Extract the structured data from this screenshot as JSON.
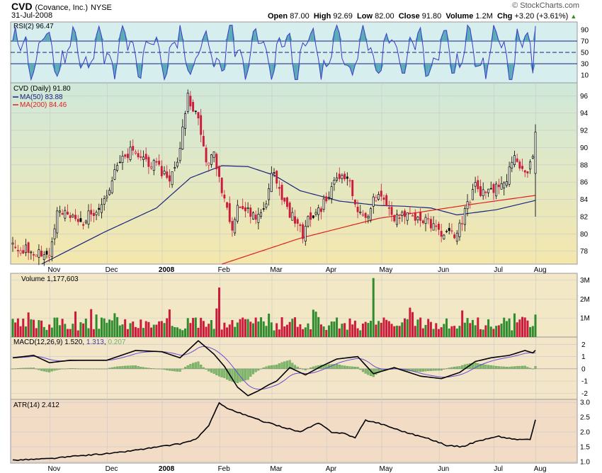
{
  "header": {
    "symbol": "CVD",
    "company": "(Covance, Inc.)",
    "exchange": "NYSE",
    "date": "31-Jul-2008",
    "open_label": "Open",
    "open": "87.00",
    "high_label": "High",
    "high": "92.69",
    "low_label": "Low",
    "low": "82.00",
    "close_label": "Close",
    "close": "91.80",
    "volume_label": "Volume",
    "volume": "1.2M",
    "chg_label": "Chg",
    "chg": "+3.20 (+3.61%)",
    "chg_icon": "triangle-up-icon",
    "brand": "© StockCharts.com"
  },
  "panels": {
    "rsi": {
      "label": "RSI(2) 96.47"
    },
    "price": {
      "label": "CVD (Daily) 91.80",
      "ma50": "MA(50) 83.88",
      "ma200": "MA(200) 84.46"
    },
    "volume": {
      "label": "Volume 1,177,603"
    },
    "macd": {
      "label": "MACD(12,26,9) 1.520,",
      "signal": "1.313",
      "hist": "0.207"
    },
    "atr": {
      "label": "ATR(14) 2.412"
    }
  },
  "colors": {
    "up": "#2e8b2e",
    "down": "#cc1a3a",
    "ma50": "#1a237e",
    "ma200": "#e02020",
    "rsi_fill": "#5aaab8",
    "rsi_bg": "#d8eeee",
    "price_bg_top": "#cde8d8",
    "price_bg_bot": "#f4e8b0",
    "vol_bg": "#f2e8c8",
    "macd_bg": "#f2e6cc",
    "atr_bg": "#f2dcc8"
  },
  "chart_data": [
    {
      "type": "line",
      "title": "RSI(2) 96.47",
      "ylim": [
        0,
        100
      ],
      "yticks": [
        10,
        30,
        50,
        70,
        90
      ],
      "y_end": 96.47
    },
    {
      "type": "candlestick",
      "title": "CVD (Daily) 91.80",
      "x_ticks": [
        "Nov",
        "Dec",
        "2008",
        "Feb",
        "Mar",
        "Apr",
        "May",
        "Jun",
        "Jul",
        "Aug"
      ],
      "yticks": [
        78,
        80,
        82,
        84,
        86,
        88,
        90,
        92,
        94,
        96
      ],
      "ylim": [
        76.5,
        97.5
      ],
      "close_keypoints": [
        [
          0,
          78.4
        ],
        [
          10,
          78.0
        ],
        [
          14,
          77.5
        ],
        [
          17,
          82.5
        ],
        [
          22,
          82.0
        ],
        [
          26,
          81.2
        ],
        [
          32,
          83.0
        ],
        [
          36,
          84.5
        ],
        [
          40,
          87.8
        ],
        [
          45,
          89.5
        ],
        [
          50,
          88.8
        ],
        [
          56,
          87.5
        ],
        [
          60,
          86.5
        ],
        [
          63,
          88.0
        ],
        [
          65,
          92.5
        ],
        [
          67,
          96.0
        ],
        [
          69,
          94.8
        ],
        [
          71,
          93.0
        ],
        [
          74,
          88.5
        ],
        [
          77,
          89.0
        ],
        [
          79,
          86.5
        ],
        [
          82,
          83.0
        ],
        [
          84,
          81.0
        ],
        [
          86,
          83.5
        ],
        [
          90,
          82.5
        ],
        [
          94,
          82.0
        ],
        [
          97,
          83.5
        ],
        [
          99,
          87.5
        ],
        [
          102,
          85.0
        ],
        [
          105,
          83.0
        ],
        [
          108,
          81.5
        ],
        [
          111,
          80.0
        ],
        [
          113,
          81.5
        ],
        [
          116,
          82.5
        ],
        [
          119,
          83.5
        ],
        [
          121,
          84.5
        ],
        [
          124,
          86.5
        ],
        [
          128,
          87.0
        ],
        [
          130,
          84.5
        ],
        [
          133,
          82.0
        ],
        [
          136,
          82.5
        ],
        [
          139,
          84.5
        ],
        [
          142,
          83.5
        ],
        [
          146,
          82.0
        ],
        [
          150,
          82.5
        ],
        [
          154,
          82.0
        ],
        [
          158,
          81.5
        ],
        [
          162,
          80.5
        ],
        [
          166,
          80.0
        ],
        [
          170,
          80.0
        ],
        [
          174,
          83.5
        ],
        [
          177,
          85.5
        ],
        [
          181,
          84.5
        ],
        [
          184,
          85.0
        ],
        [
          188,
          86.0
        ],
        [
          192,
          88.5
        ],
        [
          194,
          87.5
        ],
        [
          196,
          87.0
        ],
        [
          199,
          88.6
        ],
        [
          200,
          91.8
        ]
      ],
      "last_candle": {
        "open": 87.0,
        "high": 92.69,
        "low": 82.0,
        "close": 91.8
      },
      "ma50_keypoints": [
        [
          11,
          76.5
        ],
        [
          35,
          80.2
        ],
        [
          55,
          83.0
        ],
        [
          68,
          86.5
        ],
        [
          80,
          87.9
        ],
        [
          90,
          87.8
        ],
        [
          100,
          86.8
        ],
        [
          110,
          85.0
        ],
        [
          125,
          83.8
        ],
        [
          140,
          83.3
        ],
        [
          150,
          83.2
        ],
        [
          160,
          83.0
        ],
        [
          170,
          82.2
        ],
        [
          185,
          82.8
        ],
        [
          200,
          83.88
        ]
      ],
      "ma200_keypoints": [
        [
          80,
          76.5
        ],
        [
          110,
          79.5
        ],
        [
          140,
          81.8
        ],
        [
          175,
          83.4
        ],
        [
          200,
          84.46
        ]
      ],
      "series": [
        {
          "name": "MA(50)"
        },
        {
          "name": "MA(200)"
        }
      ]
    },
    {
      "type": "bar",
      "title": "Volume 1,177,603",
      "yticks": [
        "1M",
        "2M",
        "3M"
      ],
      "ylim": [
        0,
        3.2
      ],
      "y_end": 1.18,
      "peaks": [
        [
          79,
          2.6
        ],
        [
          138,
          3.1
        ]
      ]
    },
    {
      "type": "line",
      "title": "MACD(12,26,9) 1.520, 1.313, 0.207",
      "yticks": [
        -2,
        -1,
        0,
        1,
        2
      ],
      "ylim": [
        -2.5,
        2.6
      ],
      "macd_keypoints": [
        [
          0,
          0.9
        ],
        [
          8,
          1.1
        ],
        [
          14,
          0.5
        ],
        [
          22,
          0.7
        ],
        [
          36,
          0.7
        ],
        [
          47,
          1.5
        ],
        [
          57,
          1.4
        ],
        [
          64,
          0.9
        ],
        [
          71,
          2.3
        ],
        [
          77,
          1.2
        ],
        [
          81,
          0.2
        ],
        [
          86,
          -1.5
        ],
        [
          90,
          -2.2
        ],
        [
          94,
          -1.8
        ],
        [
          98,
          -1.3
        ],
        [
          101,
          -1.0
        ],
        [
          106,
          0.1
        ],
        [
          112,
          -0.5
        ],
        [
          118,
          0.2
        ],
        [
          124,
          0.8
        ],
        [
          132,
          1.0
        ],
        [
          138,
          -0.4
        ],
        [
          146,
          0.1
        ],
        [
          156,
          -0.6
        ],
        [
          164,
          -0.8
        ],
        [
          171,
          -0.3
        ],
        [
          177,
          0.6
        ],
        [
          183,
          0.9
        ],
        [
          190,
          1.1
        ],
        [
          196,
          1.5
        ],
        [
          199,
          1.3
        ],
        [
          200,
          1.52
        ]
      ],
      "y_end": 1.52,
      "signal_end": 1.313,
      "hist_end": 0.207
    },
    {
      "type": "line",
      "title": "ATR(14) 2.412",
      "yticks": [
        1.0,
        1.5,
        2.0,
        2.5,
        3.0
      ],
      "ylim": [
        0.95,
        3.1
      ],
      "atr_keypoints": [
        [
          0,
          1.05
        ],
        [
          14,
          1.1
        ],
        [
          26,
          1.2
        ],
        [
          40,
          1.3
        ],
        [
          52,
          1.45
        ],
        [
          64,
          1.6
        ],
        [
          70,
          1.75
        ],
        [
          75,
          2.2
        ],
        [
          79,
          3.0
        ],
        [
          82,
          2.8
        ],
        [
          88,
          2.6
        ],
        [
          96,
          2.35
        ],
        [
          104,
          2.15
        ],
        [
          110,
          2.0
        ],
        [
          117,
          2.3
        ],
        [
          122,
          2.0
        ],
        [
          127,
          1.95
        ],
        [
          131,
          1.8
        ],
        [
          135,
          2.4
        ],
        [
          140,
          2.3
        ],
        [
          150,
          2.0
        ],
        [
          160,
          1.75
        ],
        [
          166,
          1.55
        ],
        [
          172,
          1.5
        ],
        [
          178,
          1.7
        ],
        [
          186,
          1.85
        ],
        [
          192,
          1.75
        ],
        [
          198,
          1.75
        ],
        [
          200,
          2.41
        ]
      ],
      "y_end": 2.412
    }
  ]
}
